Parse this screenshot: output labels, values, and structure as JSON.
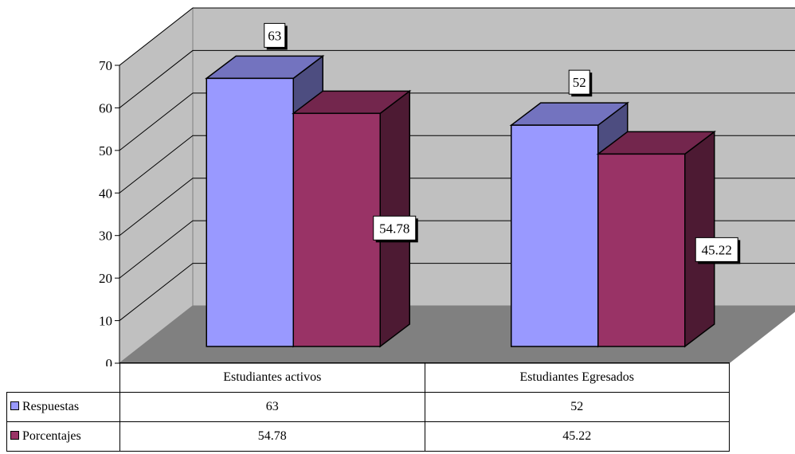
{
  "chart_data": {
    "type": "bar",
    "style": "3d-clustered-column",
    "categories": [
      "Estudiantes activos",
      "Estudiantes Egresados"
    ],
    "series": [
      {
        "name": "Respuestas",
        "values": [
          63,
          52
        ],
        "color": "#9999FF"
      },
      {
        "name": "Porcentajes",
        "values": [
          54.78,
          45.22
        ],
        "color": "#993366"
      }
    ],
    "ylim": [
      0,
      70
    ],
    "yticks": [
      0,
      10,
      20,
      30,
      40,
      50,
      60,
      70
    ],
    "grid": true,
    "legend": "data-table",
    "data_labels": true,
    "colors": {
      "wall": "#C0C0C0",
      "floor": "#808080"
    }
  }
}
